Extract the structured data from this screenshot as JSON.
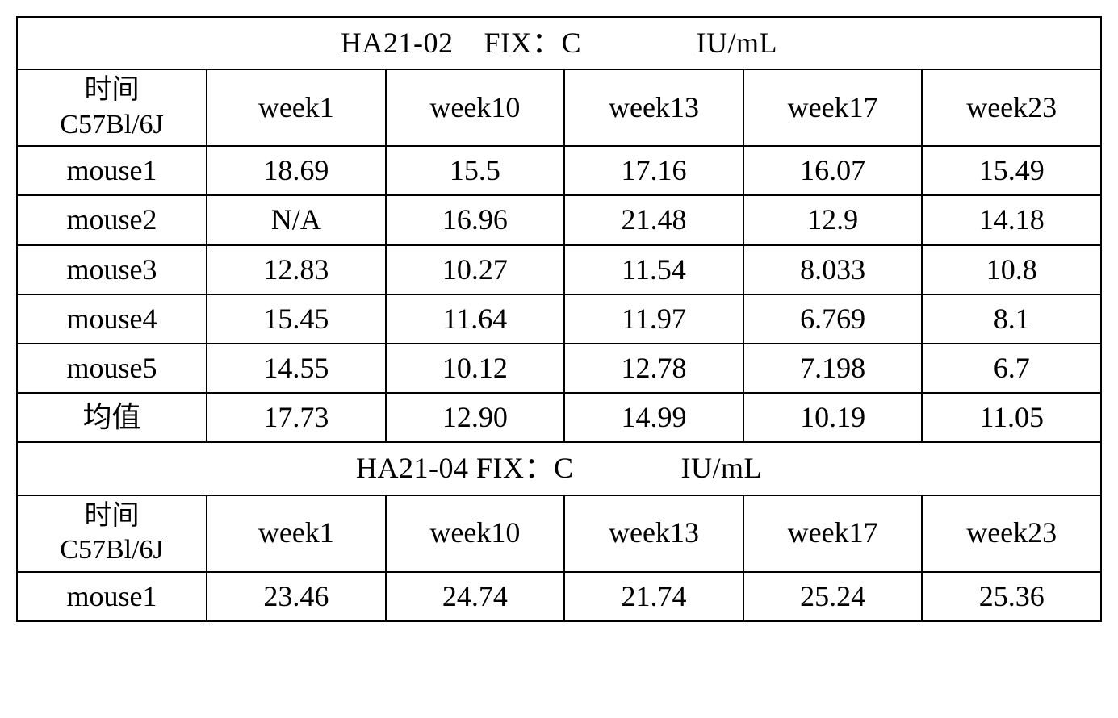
{
  "table": {
    "border_color": "#000000",
    "background_color": "#ffffff",
    "text_color": "#000000",
    "font_family": "Times New Roman / SimSun",
    "cell_fontsize_pt": 27,
    "title_fontsize_pt": 27,
    "sections": [
      {
        "title": "HA21-02    FIX：C               IU/mL",
        "header": {
          "col0_line1": "时间",
          "col0_line2": "C57Bl/6J",
          "cols": [
            "week1",
            "week10",
            "week13",
            "week17",
            "week23"
          ]
        },
        "rows": [
          {
            "label": "mouse1",
            "cells": [
              "18.69",
              "15.5",
              "17.16",
              "16.07",
              "15.49"
            ]
          },
          {
            "label": "mouse2",
            "cells": [
              "N/A",
              "16.96",
              "21.48",
              "12.9",
              "14.18"
            ]
          },
          {
            "label": "mouse3",
            "cells": [
              "12.83",
              "10.27",
              "11.54",
              "8.033",
              "10.8"
            ]
          },
          {
            "label": "mouse4",
            "cells": [
              "15.45",
              "11.64",
              "11.97",
              "6.769",
              "8.1"
            ]
          },
          {
            "label": "mouse5",
            "cells": [
              "14.55",
              "10.12",
              "12.78",
              "7.198",
              "6.7"
            ]
          },
          {
            "label": "均值",
            "cells": [
              "17.73",
              "12.90",
              "14.99",
              "10.19",
              "11.05"
            ]
          }
        ]
      },
      {
        "title": "HA21-04 FIX：C              IU/mL",
        "header": {
          "col0_line1": "时间",
          "col0_line2": "C57Bl/6J",
          "cols": [
            "week1",
            "week10",
            "week13",
            "week17",
            "week23"
          ]
        },
        "rows": [
          {
            "label": "mouse1",
            "cells": [
              "23.46",
              "24.74",
              "21.74",
              "25.24",
              "25.36"
            ]
          }
        ]
      }
    ]
  }
}
